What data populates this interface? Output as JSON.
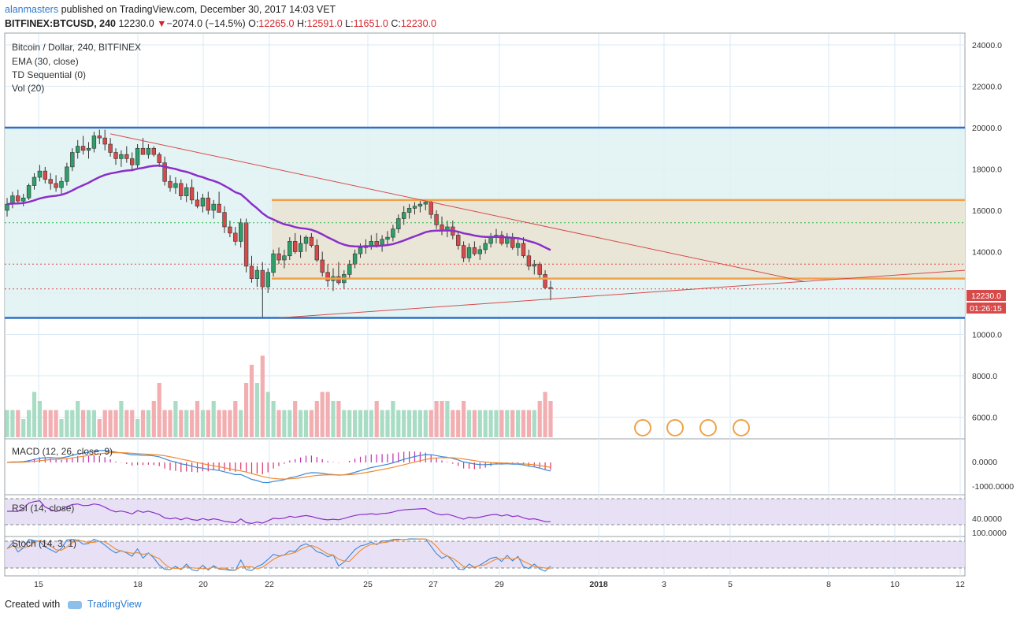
{
  "header": {
    "user": "alanmasters",
    "published": "published on TradingView.com, December 30, 2017 14:03 VET",
    "symbol": "BITFINEX:BTCUSD, 240",
    "last": "12230.0",
    "change_arrow": "▼",
    "change": "−2074.0 (−14.5%)",
    "o_label": "O:",
    "o": "12265.0",
    "h_label": "H:",
    "h": "12591.0",
    "l_label": "L:",
    "l": "11651.0",
    "c_label": "C:",
    "c": "12230.0"
  },
  "legend": {
    "main": "Bitcoin / Dollar, 240, BITFINEX",
    "ema": "EMA (30, close)",
    "td": "TD Sequential (0)",
    "vol": "Vol (20)",
    "macd": "MACD (12, 26, close, 9)",
    "rsi": "RSI (14, close)",
    "stoch": "Stoch (14, 3, 1)"
  },
  "price_badge": {
    "value": "12230.0",
    "timer": "01:26:15"
  },
  "footer": {
    "created_with": "Created with",
    "brand": "TradingView"
  },
  "colors": {
    "up": "#2e9e6a",
    "down": "#d84a4a",
    "ema": "#8b2fc9",
    "hline_blue": "#2f6fc7",
    "hline_orange": "#f0a24a",
    "macd": "#3a88d6",
    "signal": "#f08a32",
    "rsi": "#8b2fc9",
    "band_fill": "#e2d9f3",
    "teal_zone": "#dff2f2",
    "tan_zone": "#e9e4d4"
  },
  "chart_data": {
    "type": "candlestick",
    "symbol": "BITFINEX:BTCUSD",
    "interval": "240",
    "candles_ohlc": [
      [
        16000,
        16600,
        15700,
        16300
      ],
      [
        16300,
        16900,
        16100,
        16700
      ],
      [
        16700,
        17000,
        16300,
        16450
      ],
      [
        16450,
        16800,
        16200,
        16600
      ],
      [
        16600,
        17300,
        16500,
        17200
      ],
      [
        17200,
        17800,
        17000,
        17600
      ],
      [
        17600,
        18200,
        17400,
        17900
      ],
      [
        17900,
        18100,
        17300,
        17500
      ],
      [
        17500,
        17800,
        17000,
        17300
      ],
      [
        17300,
        17700,
        16900,
        17100
      ],
      [
        17100,
        17600,
        16800,
        17400
      ],
      [
        17400,
        18300,
        17200,
        18100
      ],
      [
        18100,
        19000,
        17900,
        18800
      ],
      [
        18800,
        19400,
        18500,
        19100
      ],
      [
        19100,
        19600,
        18700,
        18900
      ],
      [
        18900,
        19300,
        18500,
        19000
      ],
      [
        19000,
        19800,
        18800,
        19600
      ],
      [
        19600,
        19900,
        19200,
        19500
      ],
      [
        19500,
        19900,
        18900,
        19200
      ],
      [
        19200,
        19500,
        18600,
        18800
      ],
      [
        18800,
        19000,
        18200,
        18500
      ],
      [
        18500,
        18900,
        18100,
        18700
      ],
      [
        18700,
        19100,
        18300,
        18500
      ],
      [
        18500,
        18800,
        17900,
        18200
      ],
      [
        18200,
        19200,
        18000,
        19000
      ],
      [
        19000,
        19500,
        18700,
        18700
      ],
      [
        18700,
        19200,
        18500,
        19000
      ],
      [
        19000,
        19100,
        18600,
        18700
      ],
      [
        18700,
        18800,
        18100,
        18300
      ],
      [
        18300,
        18600,
        17200,
        17400
      ],
      [
        17400,
        17700,
        16900,
        17100
      ],
      [
        17100,
        17600,
        16800,
        17300
      ],
      [
        17300,
        17500,
        16500,
        16700
      ],
      [
        16700,
        17300,
        16400,
        17100
      ],
      [
        17100,
        17500,
        16300,
        16500
      ],
      [
        16500,
        16900,
        16100,
        16200
      ],
      [
        16200,
        16800,
        15900,
        16600
      ],
      [
        16600,
        16900,
        15800,
        16000
      ],
      [
        16000,
        16500,
        15600,
        16300
      ],
      [
        16300,
        16900,
        15900,
        15900
      ],
      [
        15900,
        16200,
        14900,
        15200
      ],
      [
        15200,
        15500,
        14700,
        14900
      ],
      [
        14900,
        15200,
        14300,
        14500
      ],
      [
        14500,
        15600,
        14200,
        15400
      ],
      [
        15400,
        15600,
        13000,
        13300
      ],
      [
        13300,
        13800,
        12500,
        12700
      ],
      [
        12700,
        13300,
        12300,
        13100
      ],
      [
        13100,
        13500,
        10800,
        12300
      ],
      [
        12300,
        13200,
        12000,
        13000
      ],
      [
        13000,
        14100,
        12800,
        13900
      ],
      [
        13900,
        14200,
        13400,
        13600
      ],
      [
        13600,
        14100,
        13200,
        13800
      ],
      [
        13800,
        14700,
        13600,
        14500
      ],
      [
        14500,
        14900,
        13900,
        14000
      ],
      [
        14000,
        14800,
        13700,
        14400
      ],
      [
        14400,
        14800,
        14000,
        14700
      ],
      [
        14700,
        14900,
        14200,
        14300
      ],
      [
        14300,
        14600,
        13500,
        13600
      ],
      [
        13600,
        14000,
        12800,
        13000
      ],
      [
        13000,
        13400,
        12300,
        12600
      ],
      [
        12600,
        13200,
        12100,
        12800
      ],
      [
        12800,
        13500,
        12400,
        12500
      ],
      [
        12500,
        13100,
        12200,
        12900
      ],
      [
        12900,
        13600,
        12700,
        13400
      ],
      [
        13400,
        14100,
        13200,
        13900
      ],
      [
        13900,
        14400,
        13700,
        14200
      ],
      [
        14200,
        14600,
        13900,
        14300
      ],
      [
        14300,
        14800,
        14100,
        14500
      ],
      [
        14500,
        14900,
        14200,
        14300
      ],
      [
        14300,
        14800,
        14000,
        14600
      ],
      [
        14600,
        15000,
        14300,
        14700
      ],
      [
        14700,
        15300,
        14500,
        15100
      ],
      [
        15100,
        15800,
        14900,
        15600
      ],
      [
        15600,
        16200,
        15300,
        15900
      ],
      [
        15900,
        16300,
        15600,
        16100
      ],
      [
        16100,
        16400,
        15800,
        16200
      ],
      [
        16200,
        16500,
        15900,
        16300
      ],
      [
        16300,
        16550,
        16000,
        16400
      ],
      [
        16400,
        16500,
        15600,
        15800
      ],
      [
        15800,
        16000,
        15100,
        15300
      ],
      [
        15300,
        15700,
        14800,
        15000
      ],
      [
        15000,
        15500,
        14700,
        15200
      ],
      [
        15200,
        15500,
        14600,
        14800
      ],
      [
        14800,
        15000,
        14100,
        14300
      ],
      [
        14300,
        14500,
        13500,
        13700
      ],
      [
        13700,
        14400,
        13500,
        14200
      ],
      [
        14200,
        14500,
        13800,
        13900
      ],
      [
        13900,
        14300,
        13600,
        14100
      ],
      [
        14100,
        14600,
        13900,
        14400
      ],
      [
        14400,
        14900,
        14200,
        14700
      ],
      [
        14700,
        15100,
        14400,
        14800
      ],
      [
        14800,
        15000,
        14300,
        14400
      ],
      [
        14400,
        14900,
        14200,
        14700
      ],
      [
        14700,
        14900,
        14100,
        14200
      ],
      [
        14200,
        14600,
        13800,
        14400
      ],
      [
        14400,
        14700,
        13700,
        13800
      ],
      [
        13800,
        14100,
        13100,
        13300
      ],
      [
        13300,
        13600,
        12900,
        13400
      ],
      [
        13400,
        13500,
        12700,
        12900
      ],
      [
        12900,
        13100,
        12200,
        12265
      ],
      [
        12265,
        12591,
        11651,
        12230
      ]
    ],
    "horizontal_levels": [
      20000,
      16500,
      12700,
      10800
    ],
    "dotted_levels": [
      15400,
      13400,
      12200
    ],
    "y_axis": {
      "labels": [
        "24000.0",
        "22000.0",
        "20000.0",
        "18000.0",
        "16000.0",
        "14000.0",
        "12000.0",
        "10000.0",
        "8000.0",
        "6000.0"
      ],
      "range": [
        5200,
        24500
      ]
    },
    "macd_axis": [
      "0.0000",
      "-1000.0000"
    ],
    "rsi_axis": [
      "40.0000"
    ],
    "stoch_axis": [
      "100.0000"
    ],
    "x_axis": {
      "labels": [
        "15",
        "18",
        "20",
        "22",
        "25",
        "27",
        "29",
        "2018",
        "3",
        "5",
        "8",
        "10",
        "12"
      ]
    },
    "volume": [
      3,
      3,
      3,
      2,
      3,
      5,
      4,
      3,
      3,
      3,
      2,
      3,
      3,
      4,
      3,
      3,
      3,
      2,
      3,
      3,
      3,
      4,
      3,
      3,
      2,
      3,
      3,
      4,
      6,
      3,
      3,
      4,
      3,
      3,
      3,
      4,
      3,
      3,
      4,
      3,
      3,
      3,
      4,
      3,
      6,
      8,
      6,
      9,
      5,
      4,
      3,
      3,
      3,
      4,
      3,
      3,
      3,
      4,
      5,
      5,
      4,
      4,
      3,
      3,
      3,
      3,
      3,
      3,
      4,
      3,
      3,
      4,
      3,
      3,
      3,
      3,
      3,
      3,
      3,
      4,
      4,
      4,
      3,
      3,
      4,
      3,
      3,
      3,
      3,
      3,
      3,
      3,
      3,
      3,
      3,
      3,
      3,
      3,
      4,
      5,
      4
    ]
  }
}
